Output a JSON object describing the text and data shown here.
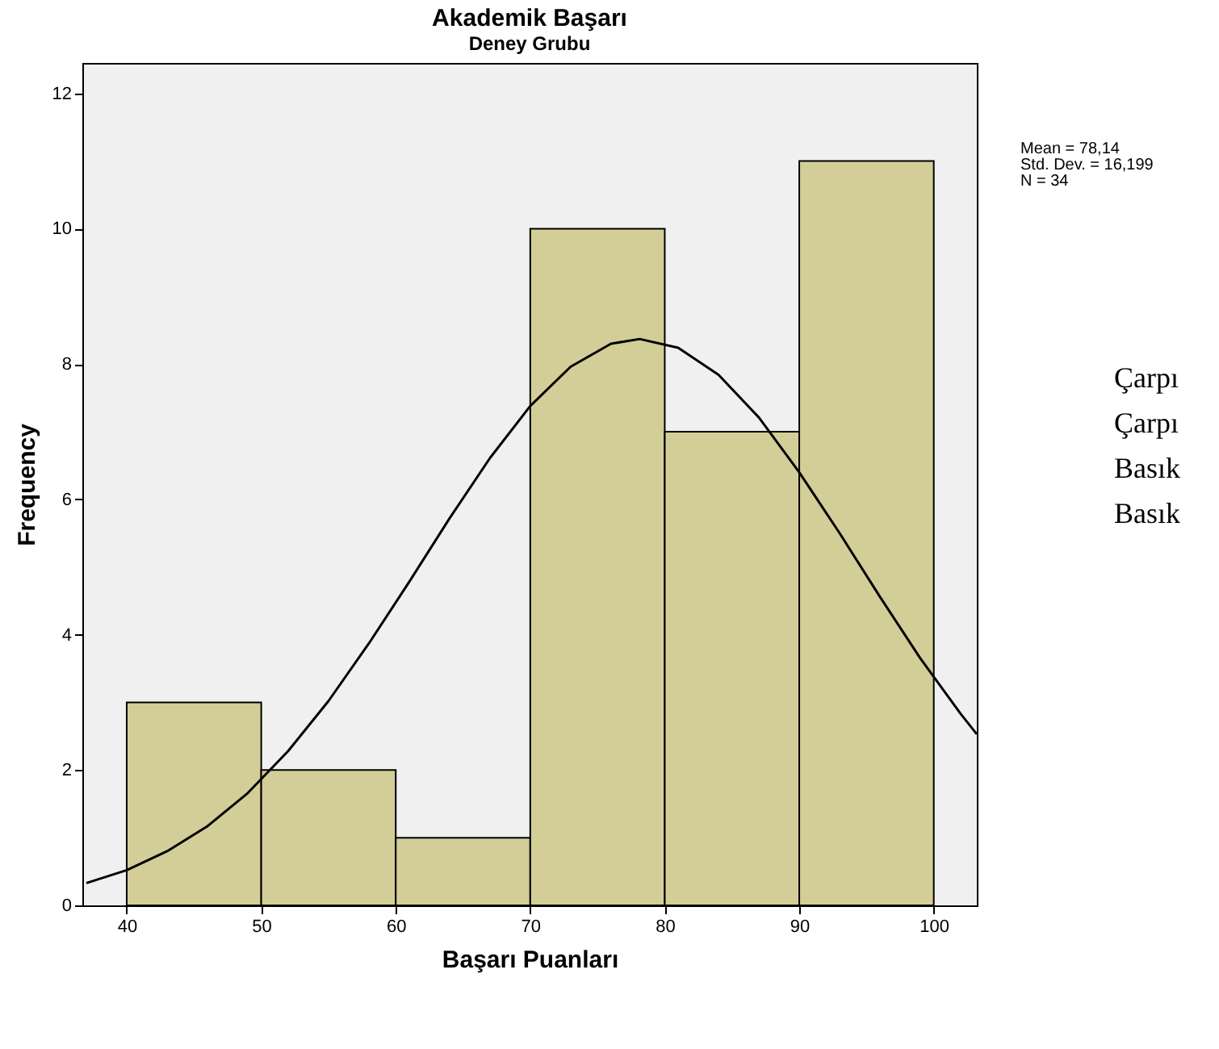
{
  "chart_data": {
    "type": "histogram",
    "title": "Akademik Başarı",
    "subtitle": "Deney Grubu",
    "xlabel": "Başarı Puanları",
    "ylabel": "Frequency",
    "bins": [
      40,
      50,
      60,
      70,
      80,
      90,
      100
    ],
    "values": [
      3,
      2,
      1,
      10,
      7,
      11
    ],
    "color": "#d3ce97",
    "series": [
      {
        "type": "line",
        "color": "#000000",
        "x": [
          37,
          40,
          43,
          46,
          49,
          52,
          55,
          58,
          61,
          64,
          67,
          70,
          73,
          76,
          78.14,
          81,
          84,
          87,
          90,
          93,
          96,
          99,
          102,
          103.2
        ],
        "values": [
          0.33,
          0.52,
          0.8,
          1.17,
          1.66,
          2.28,
          3.02,
          3.87,
          4.78,
          5.72,
          6.61,
          7.38,
          7.96,
          8.3,
          8.37,
          8.24,
          7.84,
          7.21,
          6.4,
          5.5,
          4.56,
          3.65,
          2.83,
          2.53
        ]
      }
    ],
    "xlim": [
      36.7,
      103.2
    ],
    "ylim": [
      0,
      12.45
    ],
    "xticks": [
      40,
      50,
      60,
      70,
      80,
      90,
      100
    ],
    "yticks": [
      0,
      2,
      4,
      6,
      8,
      10,
      12
    ],
    "grid": false,
    "annotations": [
      "Mean = 78,14",
      "Std. Dev. = 16,199",
      "N = 34",
      "Çarpı",
      "Çarpı",
      "Basık",
      "Basık"
    ]
  }
}
